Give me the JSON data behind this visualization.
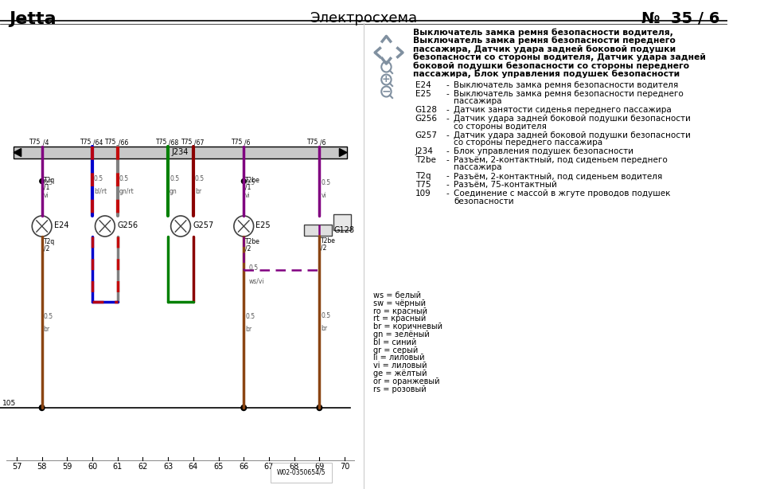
{
  "title_left": "Jetta",
  "title_center": "Электросхема",
  "title_right": "№  35 / 6",
  "bg_color": "#ffffff",
  "bold_lines": [
    "Выключатель замка ремня безопасности водителя,",
    "Выключатель замка ремня безопасности переднего",
    "пассажира, Датчик удара задней боковой подушки",
    "безопасности со стороны водителя, Датчик удара задней",
    "боковой подушки безопасности со стороны переднего",
    "пассажира, Блок управления подушек безопасности"
  ],
  "legend_data": [
    [
      "E24",
      "Выключатель замка ремня безопасности водителя",
      ""
    ],
    [
      "E25",
      "Выключатель замка ремня безопасности переднего",
      "пассажира"
    ],
    [
      "G128",
      "Датчик занятости сиденья переднего пассажира",
      ""
    ],
    [
      "G256",
      "Датчик удара задней боковой подушки безопасности",
      "со стороны водителя"
    ],
    [
      "G257",
      "Датчик удара задней боковой подушки безопасности",
      "со стороны переднего пассажира"
    ],
    [
      "J234",
      "Блок управления подушек безопасности",
      ""
    ],
    [
      "T2be",
      "Разъём, 2-контактный, под сиденьем переднего",
      "пассажира"
    ],
    [
      "T2q",
      "Разъём, 2-контактный, под сиденьем водителя",
      ""
    ],
    [
      "T75",
      "Разъём, 75-контактный",
      ""
    ],
    [
      "109",
      "Соединение с массой в жгуте проводов подушек",
      "безопасности"
    ]
  ],
  "color_legend": [
    [
      "ws",
      "белый"
    ],
    [
      "sw",
      "чёрный"
    ],
    [
      "ro",
      "красный"
    ],
    [
      "rt",
      "красный"
    ],
    [
      "br",
      "коричневый"
    ],
    [
      "gn",
      "зелёный"
    ],
    [
      "bl",
      "синий"
    ],
    [
      "gr",
      "серый"
    ],
    [
      "li",
      "лиловый"
    ],
    [
      "vi",
      "лиловый"
    ],
    [
      "ge",
      "жёлтый"
    ],
    [
      "or",
      "оранжевый"
    ],
    [
      "rs",
      "розовый"
    ]
  ],
  "x_axis_ticks": [
    57,
    58,
    59,
    60,
    61,
    62,
    63,
    64,
    65,
    66,
    67,
    68,
    69,
    70
  ],
  "ground_label": "105",
  "schematic_label": "W02-0350654/5",
  "c_vi": "#800080",
  "c_br": "#8B4513",
  "c_gn": "#008000",
  "c_ro": "#8B0000",
  "c_bl": "#0000CD",
  "c_gr": "#808080",
  "c_nav": "#8090a0"
}
